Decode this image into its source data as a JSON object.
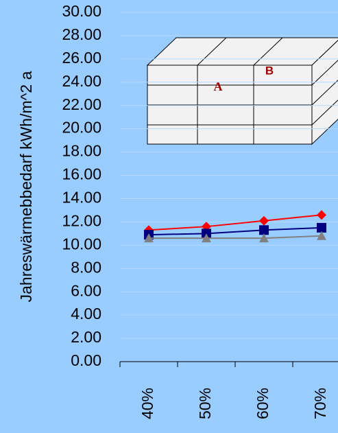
{
  "chart_data": {
    "type": "line",
    "y_label": "Jahreswärmebbedarf kWh/m^2 a",
    "categories": [
      "40%",
      "50%",
      "60%",
      "70%"
    ],
    "series": [
      {
        "color": "#ff0000",
        "marker": "diamond",
        "values": [
          11.3,
          11.6,
          12.1,
          12.6
        ]
      },
      {
        "color": "#000080",
        "marker": "square",
        "values": [
          10.9,
          11.0,
          11.3,
          11.5
        ]
      },
      {
        "color": "#808080",
        "marker": "triangle",
        "values": [
          10.6,
          10.6,
          10.6,
          10.8
        ]
      }
    ],
    "ylim": [
      0,
      30
    ],
    "yticks": [
      {
        "value": 0,
        "label": "0.00"
      },
      {
        "value": 2,
        "label": "2.00"
      },
      {
        "value": 4,
        "label": "4.00"
      },
      {
        "value": 6,
        "label": "6.00"
      },
      {
        "value": 8,
        "label": "8.00"
      },
      {
        "value": 10,
        "label": "10.00"
      },
      {
        "value": 12,
        "label": "12.00"
      },
      {
        "value": 14,
        "label": "14.00"
      },
      {
        "value": 16,
        "label": "16.00"
      },
      {
        "value": 18,
        "label": "18.00"
      },
      {
        "value": 20,
        "label": "20.00"
      },
      {
        "value": 22,
        "label": "22.00"
      },
      {
        "value": 24,
        "label": "24.00"
      },
      {
        "value": 26,
        "label": "26.00"
      },
      {
        "value": 28,
        "label": "28.00"
      },
      {
        "value": 30,
        "label": "30.00"
      }
    ],
    "grid": true,
    "annotations": [
      "A",
      "B"
    ]
  }
}
